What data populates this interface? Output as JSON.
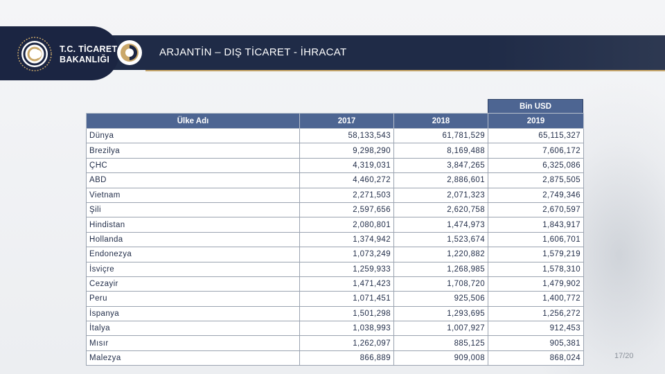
{
  "header": {
    "ministry_line1": "T.C. TİCARET",
    "ministry_line2": "BAKANLIĞI",
    "title": "ARJANTİN – DIŞ TİCARET - İHRACAT"
  },
  "colors": {
    "header_navy": "#1f2b47",
    "table_header_blue": "#4d6592",
    "gold_accent": "#caa86a"
  },
  "icons": [
    "ministry-seal-icon",
    "ring-icon"
  ],
  "table": {
    "unit_label": "Bin USD",
    "columns": [
      "Ülke Adı",
      "2017",
      "2018",
      "2019"
    ],
    "rows": [
      [
        "Dünya",
        "58,133,543",
        "61,781,529",
        "65,115,327"
      ],
      [
        "Brezilya",
        "9,298,290",
        "8,169,488",
        "7,606,172"
      ],
      [
        "ÇHC",
        "4,319,031",
        "3,847,265",
        "6,325,086"
      ],
      [
        "ABD",
        "4,460,272",
        "2,886,601",
        "2,875,505"
      ],
      [
        "Vietnam",
        "2,271,503",
        "2,071,323",
        "2,749,346"
      ],
      [
        "Şili",
        "2,597,656",
        "2,620,758",
        "2,670,597"
      ],
      [
        "Hindistan",
        "2,080,801",
        "1,474,973",
        "1,843,917"
      ],
      [
        "Hollanda",
        "1,374,942",
        "1,523,674",
        "1,606,701"
      ],
      [
        "Endonezya",
        "1,073,249",
        "1,220,882",
        "1,579,219"
      ],
      [
        "İsviçre",
        "1,259,933",
        "1,268,985",
        "1,578,310"
      ],
      [
        "Cezayir",
        "1,471,423",
        "1,708,720",
        "1,479,902"
      ],
      [
        "Peru",
        "1,071,451",
        "925,506",
        "1,400,772"
      ],
      [
        "İspanya",
        "1,501,298",
        "1,293,695",
        "1,256,272"
      ],
      [
        "İtalya",
        "1,038,993",
        "1,007,927",
        "912,453"
      ],
      [
        "Mısır",
        "1,262,097",
        "885,125",
        "905,381"
      ],
      [
        "Malezya",
        "866,889",
        "909,008",
        "868,024"
      ]
    ]
  },
  "footer": {
    "page_number": "17/20"
  }
}
